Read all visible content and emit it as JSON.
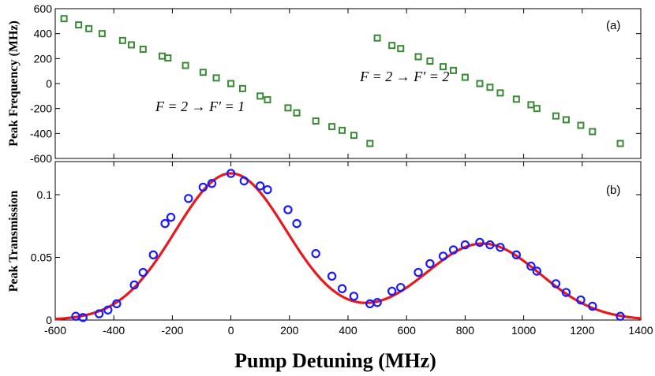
{
  "chart_data": [
    {
      "panel": "(a)",
      "type": "scatter",
      "ylabel": "Peak Frequency (MHz)",
      "xlim": [
        -600,
        1400
      ],
      "ylim": [
        -600,
        600
      ],
      "xticks": [
        -600,
        -400,
        -200,
        0,
        200,
        400,
        600,
        800,
        1000,
        1200,
        1400
      ],
      "yticks": [
        600,
        400,
        200,
        0,
        -200,
        -400,
        -600
      ],
      "marker_color": "#3a8a35",
      "annotations": [
        {
          "text": "F = 2 → F′ = 1",
          "x": -150,
          "y": -220
        },
        {
          "text": "F = 2 → F′ = 2",
          "x": 670,
          "y": 20
        }
      ],
      "series": [
        {
          "name": "F = 2 → F′ = 1",
          "x": [
            -570,
            -520,
            -485,
            -440,
            -370,
            -340,
            -300,
            -235,
            -215,
            -155,
            -95,
            -50,
            0,
            40,
            100,
            125,
            195,
            225,
            290,
            345,
            380,
            420,
            475
          ],
          "y": [
            520,
            470,
            440,
            400,
            345,
            310,
            275,
            220,
            205,
            145,
            90,
            45,
            0,
            -40,
            -100,
            -130,
            -195,
            -235,
            -300,
            -345,
            -375,
            -415,
            -480
          ]
        },
        {
          "name": "F = 2 → F′ = 2",
          "x": [
            500,
            550,
            580,
            640,
            680,
            725,
            760,
            800,
            850,
            885,
            920,
            975,
            1025,
            1045,
            1110,
            1145,
            1195,
            1235,
            1330
          ],
          "y": [
            365,
            305,
            280,
            215,
            180,
            135,
            105,
            50,
            0,
            -30,
            -75,
            -125,
            -170,
            -200,
            -260,
            -290,
            -335,
            -385,
            -480
          ]
        }
      ]
    },
    {
      "panel": "(b)",
      "type": "scatter",
      "ylabel": "Peak Transmission",
      "xlabel": "Pump Detuning (MHz)",
      "xlim": [
        -600,
        1400
      ],
      "ylim": [
        0,
        0.12
      ],
      "xticks": [
        -600,
        -400,
        -200,
        0,
        200,
        400,
        600,
        800,
        1000,
        1200,
        1400
      ],
      "yticks": [
        0.1,
        0.05,
        0
      ],
      "marker_color": "#1a1aff",
      "fit_color": "#e8191c",
      "series": [
        {
          "name": "data",
          "x": [
            -530,
            -505,
            -450,
            -420,
            -390,
            -330,
            -300,
            -265,
            -225,
            -205,
            -145,
            -95,
            -65,
            0,
            45,
            100,
            125,
            195,
            225,
            290,
            345,
            380,
            420,
            475,
            500,
            550,
            580,
            640,
            680,
            725,
            760,
            800,
            850,
            885,
            920,
            975,
            1025,
            1045,
            1110,
            1145,
            1195,
            1235,
            1330
          ],
          "y": [
            0.003,
            0.002,
            0.005,
            0.008,
            0.013,
            0.028,
            0.038,
            0.052,
            0.077,
            0.082,
            0.097,
            0.106,
            0.109,
            0.117,
            0.111,
            0.107,
            0.104,
            0.088,
            0.077,
            0.053,
            0.035,
            0.025,
            0.019,
            0.013,
            0.014,
            0.023,
            0.026,
            0.038,
            0.045,
            0.051,
            0.056,
            0.06,
            0.062,
            0.06,
            0.058,
            0.052,
            0.043,
            0.039,
            0.029,
            0.022,
            0.016,
            0.011,
            0.003
          ]
        },
        {
          "name": "fit",
          "kind": "double-gaussian",
          "components": [
            {
              "amplitude": 0.117,
              "center": 0,
              "sigma": 190
            },
            {
              "amplitude": 0.061,
              "center": 860,
              "sigma": 195
            }
          ]
        }
      ]
    }
  ],
  "xlabel": "Pump Detuning (MHz)"
}
